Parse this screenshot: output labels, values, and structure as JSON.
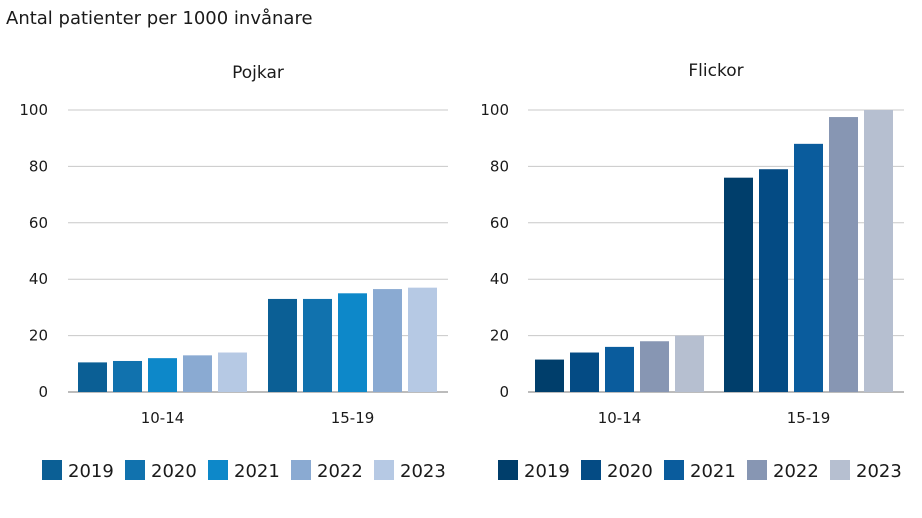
{
  "page": {
    "title": "Antal patienter per 1000 invånare"
  },
  "chart_data": [
    {
      "type": "bar",
      "title": "Pojkar",
      "categories": [
        "10-14",
        "15-19"
      ],
      "ylim": [
        0,
        100
      ],
      "yticks": [
        0,
        20,
        40,
        60,
        80,
        100
      ],
      "grid": true,
      "legend_position": "bottom",
      "series": [
        {
          "name": "2019",
          "color": "#0b5f95",
          "values": [
            10.5,
            33
          ]
        },
        {
          "name": "2020",
          "color": "#1172ae",
          "values": [
            11,
            33
          ]
        },
        {
          "name": "2021",
          "color": "#0d88c9",
          "values": [
            12,
            35
          ]
        },
        {
          "name": "2022",
          "color": "#8aaad2",
          "values": [
            13,
            36.5
          ]
        },
        {
          "name": "2023",
          "color": "#b6c9e4",
          "values": [
            14,
            37
          ]
        }
      ]
    },
    {
      "type": "bar",
      "title": "Flickor",
      "categories": [
        "10-14",
        "15-19"
      ],
      "ylim": [
        0,
        100
      ],
      "yticks": [
        0,
        20,
        40,
        60,
        80,
        100
      ],
      "grid": true,
      "legend_position": "bottom",
      "series": [
        {
          "name": "2019",
          "color": "#003e6b",
          "values": [
            11.5,
            76
          ]
        },
        {
          "name": "2020",
          "color": "#044b84",
          "values": [
            14,
            79
          ]
        },
        {
          "name": "2021",
          "color": "#0a5c9d",
          "values": [
            16,
            88
          ]
        },
        {
          "name": "2022",
          "color": "#8796b3",
          "values": [
            18,
            97.5
          ]
        },
        {
          "name": "2023",
          "color": "#b6bfd0",
          "values": [
            20,
            100
          ]
        }
      ]
    }
  ]
}
